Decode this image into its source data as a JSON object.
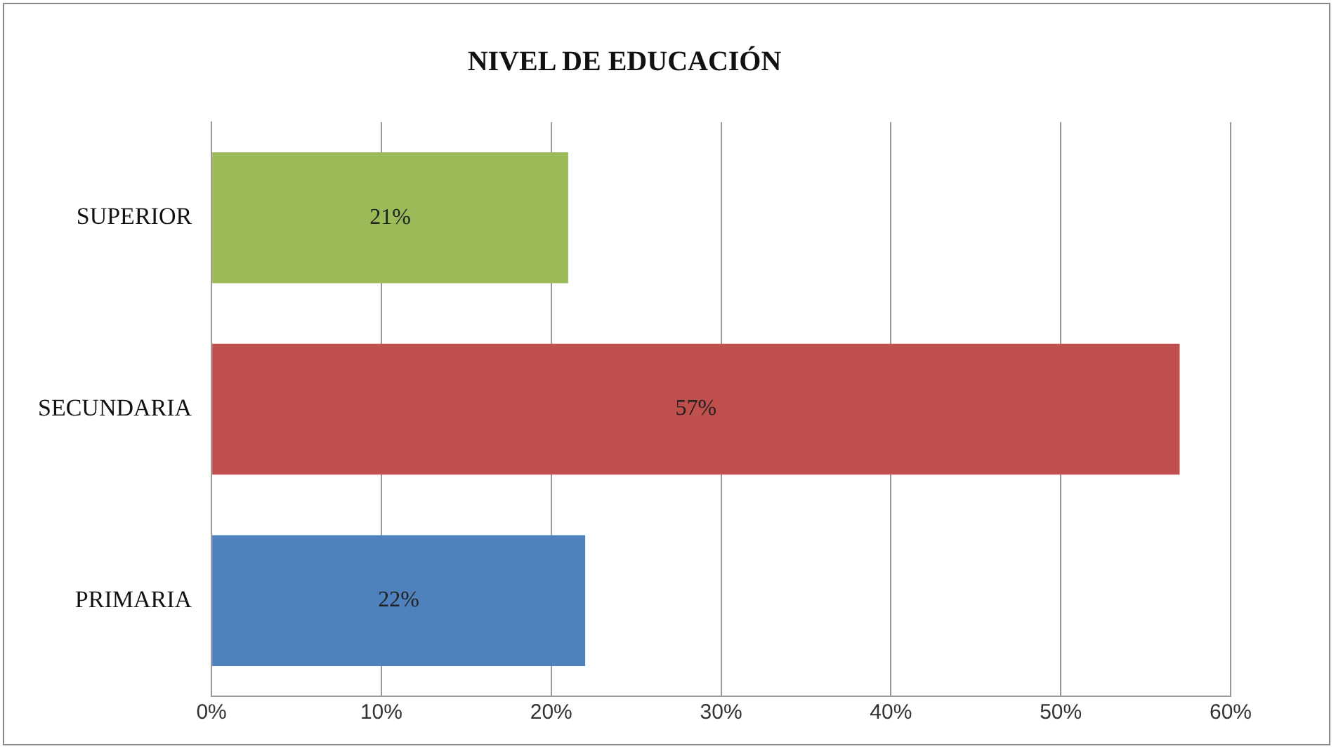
{
  "chart_data": {
    "type": "bar",
    "orientation": "horizontal",
    "title": "NIVEL DE EDUCACIÓN",
    "categories": [
      "SUPERIOR",
      "SECUNDARIA",
      "PRIMARIA"
    ],
    "values": [
      21,
      57,
      22
    ],
    "colors": [
      "#9bbb59",
      "#c0504d",
      "#4f81bd"
    ],
    "value_labels": [
      "21%",
      "57%",
      "22%"
    ],
    "xlim": [
      0,
      60
    ],
    "xticks": [
      {
        "value": 0,
        "label": "0%"
      },
      {
        "value": 10,
        "label": "10%"
      },
      {
        "value": 20,
        "label": "20%"
      },
      {
        "value": 30,
        "label": "30%"
      },
      {
        "value": 40,
        "label": "40%"
      },
      {
        "value": 50,
        "label": "50%"
      },
      {
        "value": 60,
        "label": "60%"
      }
    ],
    "grid": "x",
    "legend": false
  }
}
